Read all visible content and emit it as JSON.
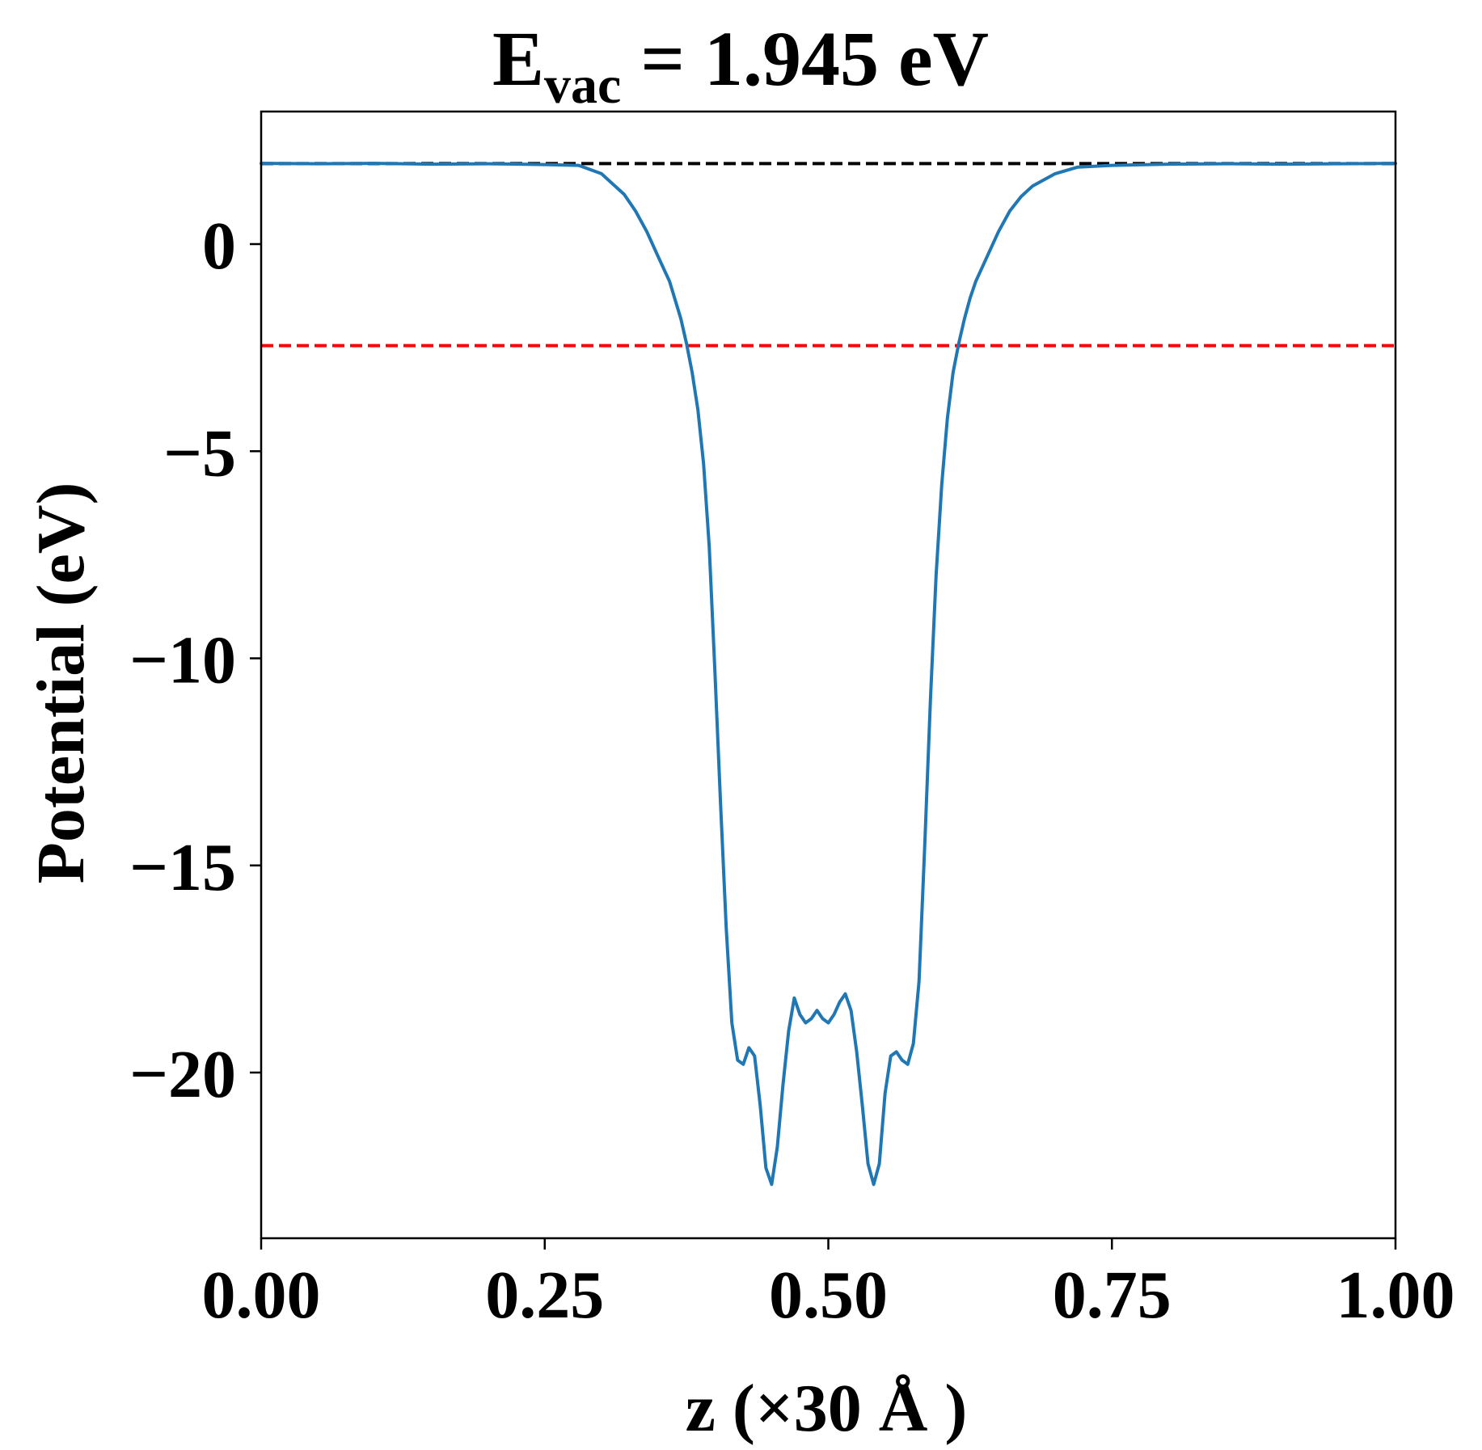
{
  "chart_data": {
    "type": "line",
    "title": {
      "main": "E",
      "subscript": "vac",
      "suffix": " = 1.945 eV"
    },
    "xlabel": "z (×30 Å )",
    "ylabel": "Potential (eV)",
    "xlim": [
      0,
      1
    ],
    "ylim": [
      -24.0,
      3.2
    ],
    "xticks": [
      {
        "value": 0.0,
        "label": "0.00"
      },
      {
        "value": 0.25,
        "label": "0.25"
      },
      {
        "value": 0.5,
        "label": "0.50"
      },
      {
        "value": 0.75,
        "label": "0.75"
      },
      {
        "value": 1.0,
        "label": "1.00"
      }
    ],
    "yticks": [
      {
        "value": 0,
        "label": "0"
      },
      {
        "value": -5,
        "label": "−5"
      },
      {
        "value": -10,
        "label": "−10"
      },
      {
        "value": -15,
        "label": "−15"
      },
      {
        "value": -20,
        "label": "−20"
      }
    ],
    "grid": false,
    "reference_lines": [
      {
        "y": 1.945,
        "color": "#000000",
        "style": "dashed"
      },
      {
        "y": -2.45,
        "color": "#ff0000",
        "style": "dashed"
      }
    ],
    "series": [
      {
        "color": "#1f77b4",
        "x": [
          0.0,
          0.05,
          0.1,
          0.15,
          0.2,
          0.25,
          0.28,
          0.3,
          0.32,
          0.33,
          0.34,
          0.35,
          0.36,
          0.37,
          0.375,
          0.38,
          0.385,
          0.39,
          0.395,
          0.4,
          0.405,
          0.41,
          0.415,
          0.42,
          0.425,
          0.43,
          0.435,
          0.44,
          0.445,
          0.45,
          0.455,
          0.46,
          0.465,
          0.47,
          0.475,
          0.48,
          0.485,
          0.49,
          0.495,
          0.5,
          0.505,
          0.51,
          0.515,
          0.52,
          0.525,
          0.53,
          0.535,
          0.54,
          0.545,
          0.55,
          0.555,
          0.56,
          0.565,
          0.57,
          0.575,
          0.58,
          0.585,
          0.59,
          0.595,
          0.6,
          0.605,
          0.61,
          0.615,
          0.62,
          0.625,
          0.63,
          0.64,
          0.65,
          0.66,
          0.67,
          0.68,
          0.7,
          0.72,
          0.75,
          0.8,
          0.85,
          0.9,
          0.95,
          1.0
        ],
        "y": [
          1.95,
          1.94,
          1.95,
          1.93,
          1.94,
          1.92,
          1.9,
          1.7,
          1.2,
          0.8,
          0.3,
          -0.3,
          -0.9,
          -1.8,
          -2.4,
          -3.1,
          -4.0,
          -5.3,
          -7.3,
          -10.3,
          -13.5,
          -16.5,
          -18.8,
          -19.7,
          -19.8,
          -19.4,
          -19.6,
          -20.8,
          -22.3,
          -22.7,
          -21.8,
          -20.3,
          -19.0,
          -18.2,
          -18.6,
          -18.8,
          -18.7,
          -18.5,
          -18.7,
          -18.8,
          -18.6,
          -18.3,
          -18.1,
          -18.5,
          -19.5,
          -20.8,
          -22.2,
          -22.7,
          -22.2,
          -20.5,
          -19.6,
          -19.5,
          -19.7,
          -19.8,
          -19.3,
          -17.8,
          -14.5,
          -11.0,
          -8.0,
          -5.8,
          -4.2,
          -3.1,
          -2.4,
          -1.8,
          -1.3,
          -0.9,
          -0.3,
          0.3,
          0.8,
          1.15,
          1.4,
          1.7,
          1.86,
          1.9,
          1.93,
          1.94,
          1.93,
          1.94,
          1.95
        ]
      }
    ]
  }
}
